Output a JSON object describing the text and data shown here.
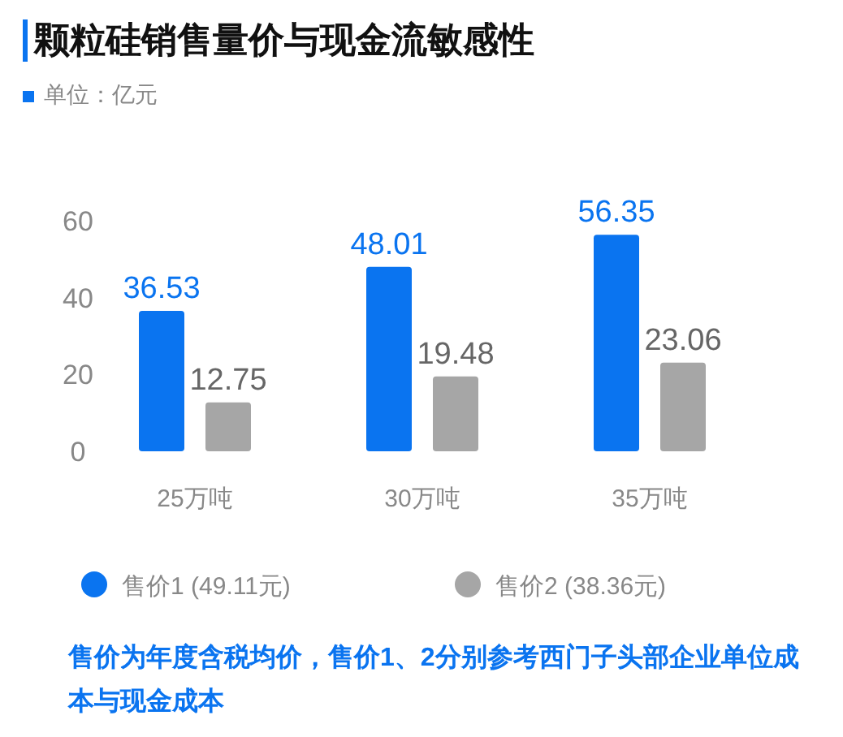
{
  "chart_data": {
    "type": "bar",
    "title": "颗粒硅销售量价与现金流敏感性",
    "subtitle": "单位：亿元",
    "categories": [
      "25万吨",
      "30万吨",
      "35万吨"
    ],
    "series": [
      {
        "name": "售价1 (49.11元)",
        "color": "#0a74f0",
        "values": [
          36.53,
          48.01,
          56.35
        ]
      },
      {
        "name": "售价2 (38.36元)",
        "color": "#a6a6a6",
        "values": [
          12.75,
          19.48,
          23.06
        ]
      }
    ],
    "ylim": [
      0,
      60
    ],
    "yticks": [
      0,
      20,
      40,
      60
    ],
    "grid": false,
    "data_labels": true,
    "legend": "bottom",
    "annotations": [
      "售价为年度含税均价，售价1、2分别参考西门子头部企业单位成本与现金成本"
    ]
  }
}
